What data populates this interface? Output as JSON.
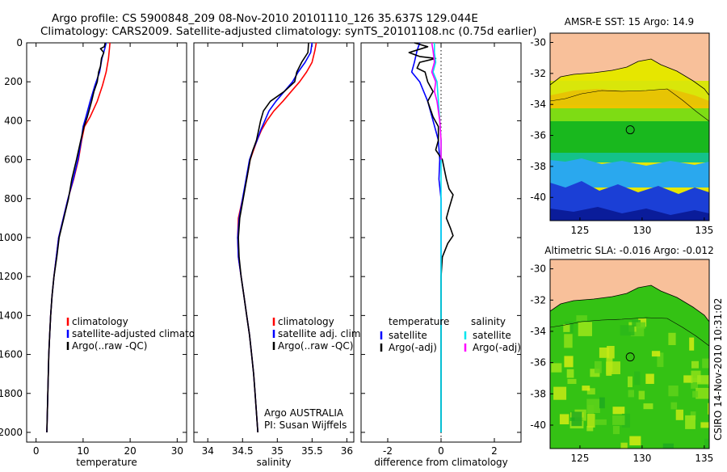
{
  "header": {
    "line1": "Argo profile: CS 5900848_209 08-Nov-2010 20101110_126 35.637S 129.044E",
    "line2": "Climatology: CARS2009. Satellite-adjusted climatology: synTS_20101108.nc (0.75d earlier)"
  },
  "credit": "CSIRO 14-Nov-2010 10:31:02",
  "colors": {
    "climatology": "#ff0000",
    "satellite": "#0000ff",
    "argo": "#000000",
    "sal_satellite": "#00e5ee",
    "sal_argo": "#ff00ff",
    "land": "#f8c09a",
    "zero_line": "#000000"
  },
  "chart_data": [
    {
      "id": "temperature",
      "type": "line",
      "xlabel": "temperature",
      "ylabel": "",
      "xlim": [
        -2,
        32
      ],
      "ylim": [
        2050,
        0
      ],
      "xticks": [
        0,
        10,
        20,
        30
      ],
      "yticks": [
        0,
        200,
        400,
        600,
        800,
        1000,
        1200,
        1400,
        1600,
        1800,
        2000
      ],
      "legend": [
        "climatology",
        "satellite-adjusted climatolog",
        "Argo(..raw -QC)"
      ],
      "series": [
        {
          "name": "climatology",
          "color": "#ff0000",
          "points": [
            [
              15.7,
              0
            ],
            [
              15.6,
              30
            ],
            [
              15.4,
              80
            ],
            [
              14.9,
              150
            ],
            [
              14.1,
              220
            ],
            [
              13.0,
              300
            ],
            [
              11.5,
              380
            ],
            [
              10.3,
              430
            ],
            [
              9.7,
              500
            ],
            [
              9.0,
              600
            ],
            [
              8.0,
              700
            ],
            [
              6.8,
              800
            ],
            [
              5.8,
              900
            ],
            [
              4.8,
              1000
            ],
            [
              4.3,
              1100
            ],
            [
              3.8,
              1200
            ],
            [
              3.4,
              1300
            ],
            [
              3.1,
              1400
            ],
            [
              2.9,
              1500
            ],
            [
              2.7,
              1600
            ],
            [
              2.6,
              1700
            ],
            [
              2.5,
              1800
            ],
            [
              2.4,
              1900
            ],
            [
              2.3,
              2000
            ]
          ]
        },
        {
          "name": "satellite-adjusted climatolog",
          "color": "#0000ff",
          "points": [
            [
              14.9,
              0
            ],
            [
              14.6,
              30
            ],
            [
              14.0,
              80
            ],
            [
              13.5,
              150
            ],
            [
              12.5,
              220
            ],
            [
              11.5,
              300
            ],
            [
              10.6,
              380
            ],
            [
              10.0,
              430
            ],
            [
              9.6,
              500
            ],
            [
              8.9,
              600
            ],
            [
              7.9,
              700
            ],
            [
              6.8,
              800
            ],
            [
              5.8,
              900
            ],
            [
              4.8,
              1000
            ],
            [
              4.3,
              1100
            ],
            [
              3.8,
              1200
            ],
            [
              3.4,
              1300
            ],
            [
              3.1,
              1400
            ],
            [
              2.9,
              1500
            ],
            [
              2.7,
              1600
            ],
            [
              2.6,
              1700
            ],
            [
              2.5,
              1800
            ],
            [
              2.4,
              1900
            ],
            [
              2.3,
              2000
            ]
          ]
        },
        {
          "name": "Argo(..raw -QC)",
          "color": "#000000",
          "points": [
            [
              14.7,
              0
            ],
            [
              14.5,
              20
            ],
            [
              13.7,
              30
            ],
            [
              14.4,
              50
            ],
            [
              13.9,
              80
            ],
            [
              13.7,
              120
            ],
            [
              13.3,
              150
            ],
            [
              13.0,
              200
            ],
            [
              12.3,
              250
            ],
            [
              11.8,
              300
            ],
            [
              10.9,
              380
            ],
            [
              10.2,
              430
            ],
            [
              9.5,
              500
            ],
            [
              8.6,
              600
            ],
            [
              7.6,
              700
            ],
            [
              6.9,
              800
            ],
            [
              5.9,
              900
            ],
            [
              4.9,
              1000
            ],
            [
              4.4,
              1100
            ],
            [
              3.8,
              1200
            ],
            [
              3.4,
              1300
            ],
            [
              3.1,
              1400
            ],
            [
              2.9,
              1500
            ],
            [
              2.7,
              1600
            ],
            [
              2.6,
              1700
            ],
            [
              2.5,
              1800
            ],
            [
              2.4,
              1900
            ],
            [
              2.3,
              2000
            ]
          ]
        }
      ]
    },
    {
      "id": "salinity",
      "type": "line",
      "xlabel": "salinity",
      "ylabel": "",
      "xlim": [
        33.8,
        36.1
      ],
      "ylim": [
        2050,
        0
      ],
      "xticks": [
        34,
        34.5,
        35,
        35.5,
        36
      ],
      "yticks": [],
      "legend": [
        "climatology",
        "satellite adj. clim.",
        "Argo(..raw -QC)"
      ],
      "annotation": [
        "Argo AUSTRALIA",
        "PI: Susan Wijffels"
      ],
      "series": [
        {
          "name": "climatology",
          "color": "#ff0000",
          "points": [
            [
              35.56,
              0
            ],
            [
              35.54,
              40
            ],
            [
              35.5,
              100
            ],
            [
              35.42,
              150
            ],
            [
              35.32,
              200
            ],
            [
              35.2,
              250
            ],
            [
              35.08,
              300
            ],
            [
              34.95,
              350
            ],
            [
              34.85,
              400
            ],
            [
              34.77,
              450
            ],
            [
              34.71,
              500
            ],
            [
              34.66,
              550
            ],
            [
              34.61,
              600
            ],
            [
              34.56,
              700
            ],
            [
              34.5,
              800
            ],
            [
              34.44,
              900
            ],
            [
              34.43,
              1000
            ],
            [
              34.44,
              1100
            ],
            [
              34.48,
              1200
            ],
            [
              34.52,
              1300
            ],
            [
              34.56,
              1400
            ],
            [
              34.6,
              1500
            ],
            [
              34.63,
              1600
            ],
            [
              34.66,
              1700
            ],
            [
              34.68,
              1800
            ],
            [
              34.7,
              1900
            ],
            [
              34.72,
              2000
            ]
          ]
        },
        {
          "name": "satellite adj. clim.",
          "color": "#0000ff",
          "points": [
            [
              35.5,
              0
            ],
            [
              35.48,
              50
            ],
            [
              35.4,
              100
            ],
            [
              35.3,
              150
            ],
            [
              35.22,
              200
            ],
            [
              35.1,
              250
            ],
            [
              34.98,
              300
            ],
            [
              34.88,
              350
            ],
            [
              34.82,
              400
            ],
            [
              34.76,
              450
            ],
            [
              34.71,
              500
            ],
            [
              34.65,
              550
            ],
            [
              34.6,
              600
            ],
            [
              34.55,
              700
            ],
            [
              34.5,
              800
            ],
            [
              34.45,
              900
            ],
            [
              34.43,
              1000
            ],
            [
              34.44,
              1100
            ],
            [
              34.48,
              1200
            ],
            [
              34.52,
              1300
            ],
            [
              34.56,
              1400
            ],
            [
              34.6,
              1500
            ],
            [
              34.63,
              1600
            ],
            [
              34.66,
              1700
            ],
            [
              34.68,
              1800
            ],
            [
              34.7,
              1900
            ],
            [
              34.72,
              2000
            ]
          ]
        },
        {
          "name": "Argo(..raw -QC)",
          "color": "#000000",
          "points": [
            [
              35.45,
              0
            ],
            [
              35.44,
              50
            ],
            [
              35.35,
              100
            ],
            [
              35.28,
              150
            ],
            [
              35.25,
              200
            ],
            [
              35.1,
              250
            ],
            [
              34.9,
              300
            ],
            [
              34.8,
              350
            ],
            [
              34.76,
              400
            ],
            [
              34.73,
              450
            ],
            [
              34.7,
              500
            ],
            [
              34.65,
              550
            ],
            [
              34.61,
              600
            ],
            [
              34.56,
              700
            ],
            [
              34.51,
              800
            ],
            [
              34.46,
              900
            ],
            [
              34.44,
              1000
            ],
            [
              34.45,
              1100
            ],
            [
              34.48,
              1200
            ],
            [
              34.52,
              1300
            ],
            [
              34.56,
              1400
            ],
            [
              34.6,
              1500
            ],
            [
              34.63,
              1600
            ],
            [
              34.66,
              1700
            ],
            [
              34.68,
              1800
            ],
            [
              34.7,
              1900
            ],
            [
              34.72,
              2000
            ]
          ]
        }
      ]
    },
    {
      "id": "difference",
      "type": "line",
      "xlabel": "difference from climatology",
      "ylabel": "",
      "xlim": [
        -3,
        3
      ],
      "ylim": [
        2050,
        0
      ],
      "xticks": [
        -2,
        0,
        2
      ],
      "yticks": [],
      "legend_left_title": "temperature",
      "legend_right_title": "salinity",
      "legend": [
        "satellite",
        "Argo(-adj)",
        "satellite",
        "Argo(-adj)"
      ],
      "series": [
        {
          "name": "satellite",
          "group": "temperature",
          "color": "#0000ff",
          "points": [
            [
              -0.8,
              0
            ],
            [
              -0.9,
              40
            ],
            [
              -1.0,
              100
            ],
            [
              -1.1,
              150
            ],
            [
              -0.8,
              200
            ],
            [
              -0.5,
              300
            ],
            [
              -0.3,
              400
            ],
            [
              -0.1,
              500
            ],
            [
              -0.05,
              600
            ],
            [
              -0.08,
              700
            ],
            [
              0,
              800
            ],
            [
              0,
              900
            ],
            [
              0,
              1000
            ],
            [
              0,
              1200
            ],
            [
              0,
              1400
            ],
            [
              0,
              1600
            ],
            [
              0,
              1800
            ],
            [
              0,
              2000
            ]
          ]
        },
        {
          "name": "Argo(-adj)",
          "group": "temperature",
          "color": "#000000",
          "points": [
            [
              -1.0,
              0
            ],
            [
              -0.5,
              20
            ],
            [
              -1.2,
              50
            ],
            [
              -0.8,
              70
            ],
            [
              -0.2,
              80
            ],
            [
              -0.8,
              100
            ],
            [
              -0.9,
              130
            ],
            [
              -0.6,
              150
            ],
            [
              -0.5,
              200
            ],
            [
              -0.3,
              250
            ],
            [
              -0.5,
              300
            ],
            [
              -0.3,
              380
            ],
            [
              -0.1,
              430
            ],
            [
              -0.1,
              500
            ],
            [
              -0.2,
              550
            ],
            [
              0.05,
              600
            ],
            [
              0.2,
              700
            ],
            [
              0.3,
              750
            ],
            [
              0.45,
              780
            ],
            [
              0.3,
              850
            ],
            [
              0.2,
              900
            ],
            [
              0.35,
              950
            ],
            [
              0.45,
              990
            ],
            [
              0.25,
              1030
            ],
            [
              0.05,
              1100
            ],
            [
              0,
              1200
            ],
            [
              0,
              1400
            ],
            [
              0,
              1600
            ],
            [
              0,
              1800
            ],
            [
              0,
              2000
            ]
          ]
        },
        {
          "name": "satellite",
          "group": "salinity",
          "color": "#00e5ee",
          "points": [
            [
              -0.25,
              0
            ],
            [
              -0.25,
              50
            ],
            [
              -0.2,
              100
            ],
            [
              -0.3,
              150
            ],
            [
              -0.15,
              200
            ],
            [
              -0.1,
              300
            ],
            [
              -0.05,
              400
            ],
            [
              0,
              500
            ],
            [
              0,
              700
            ],
            [
              0,
              900
            ],
            [
              0,
              1100
            ],
            [
              0,
              1400
            ],
            [
              0,
              1700
            ],
            [
              0,
              2000
            ]
          ]
        },
        {
          "name": "Argo(-adj)",
          "group": "salinity",
          "color": "#ff00ff",
          "points": [
            [
              -0.35,
              0
            ],
            [
              -0.3,
              40
            ],
            [
              -0.25,
              100
            ],
            [
              -0.35,
              150
            ],
            [
              -0.2,
              200
            ],
            [
              -0.25,
              250
            ],
            [
              -0.15,
              300
            ],
            [
              -0.05,
              400
            ],
            [
              0,
              500
            ],
            [
              0,
              600
            ]
          ]
        }
      ]
    },
    {
      "id": "sst-map",
      "type": "heatmap",
      "title": "AMSR-E SST: 15 Argo: 14.9",
      "xticks": [
        125,
        130,
        135
      ],
      "yticks": [
        -30,
        -32,
        -34,
        -36,
        -38,
        -40
      ],
      "xlim": [
        122.6,
        135.4
      ],
      "ylim": [
        -41.5,
        -29.4
      ],
      "marker": {
        "lon": 129.044,
        "lat": -35.637
      }
    },
    {
      "id": "sla-map",
      "type": "heatmap",
      "title": "Altimetric SLA: -0.016 Argo: -0.012",
      "xticks": [
        125,
        130,
        135
      ],
      "yticks": [
        -30,
        -32,
        -34,
        -36,
        -38,
        -40
      ],
      "xlim": [
        122.6,
        135.4
      ],
      "ylim": [
        -41.5,
        -29.4
      ],
      "marker": {
        "lon": 129.044,
        "lat": -35.637
      }
    }
  ]
}
